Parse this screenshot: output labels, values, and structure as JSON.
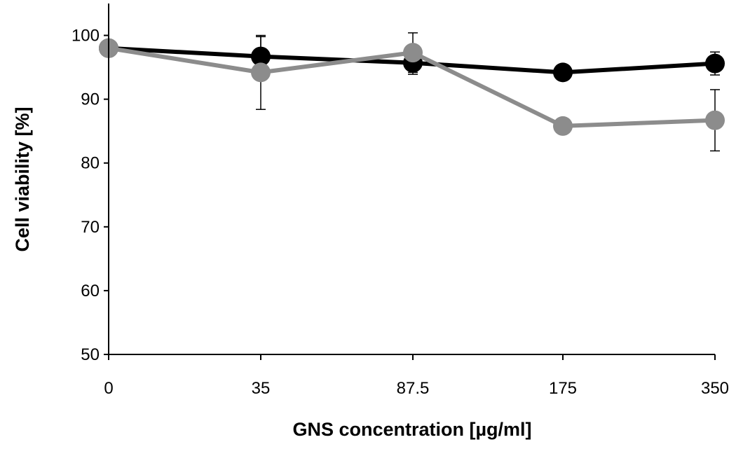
{
  "chart_data": {
    "type": "line",
    "title": "",
    "xlabel": "GNS concentration [µg/ml]",
    "ylabel": "Cell viability [%]",
    "categories": [
      "0",
      "35",
      "87.5",
      "175",
      "350"
    ],
    "ylim": [
      50,
      105
    ],
    "yticks": [
      50,
      60,
      70,
      80,
      90,
      100
    ],
    "grid": false,
    "legend": "none",
    "series": [
      {
        "color": "#000000",
        "values": [
          98.0,
          96.7,
          95.7,
          94.2,
          95.6
        ],
        "errors": [
          0.0,
          3.1,
          1.8,
          0.5,
          1.8
        ]
      },
      {
        "color": "#8c8c8c",
        "values": [
          98.0,
          94.2,
          97.3,
          85.8,
          86.7
        ],
        "errors": [
          0.0,
          5.8,
          3.1,
          0.3,
          4.8
        ]
      }
    ]
  }
}
